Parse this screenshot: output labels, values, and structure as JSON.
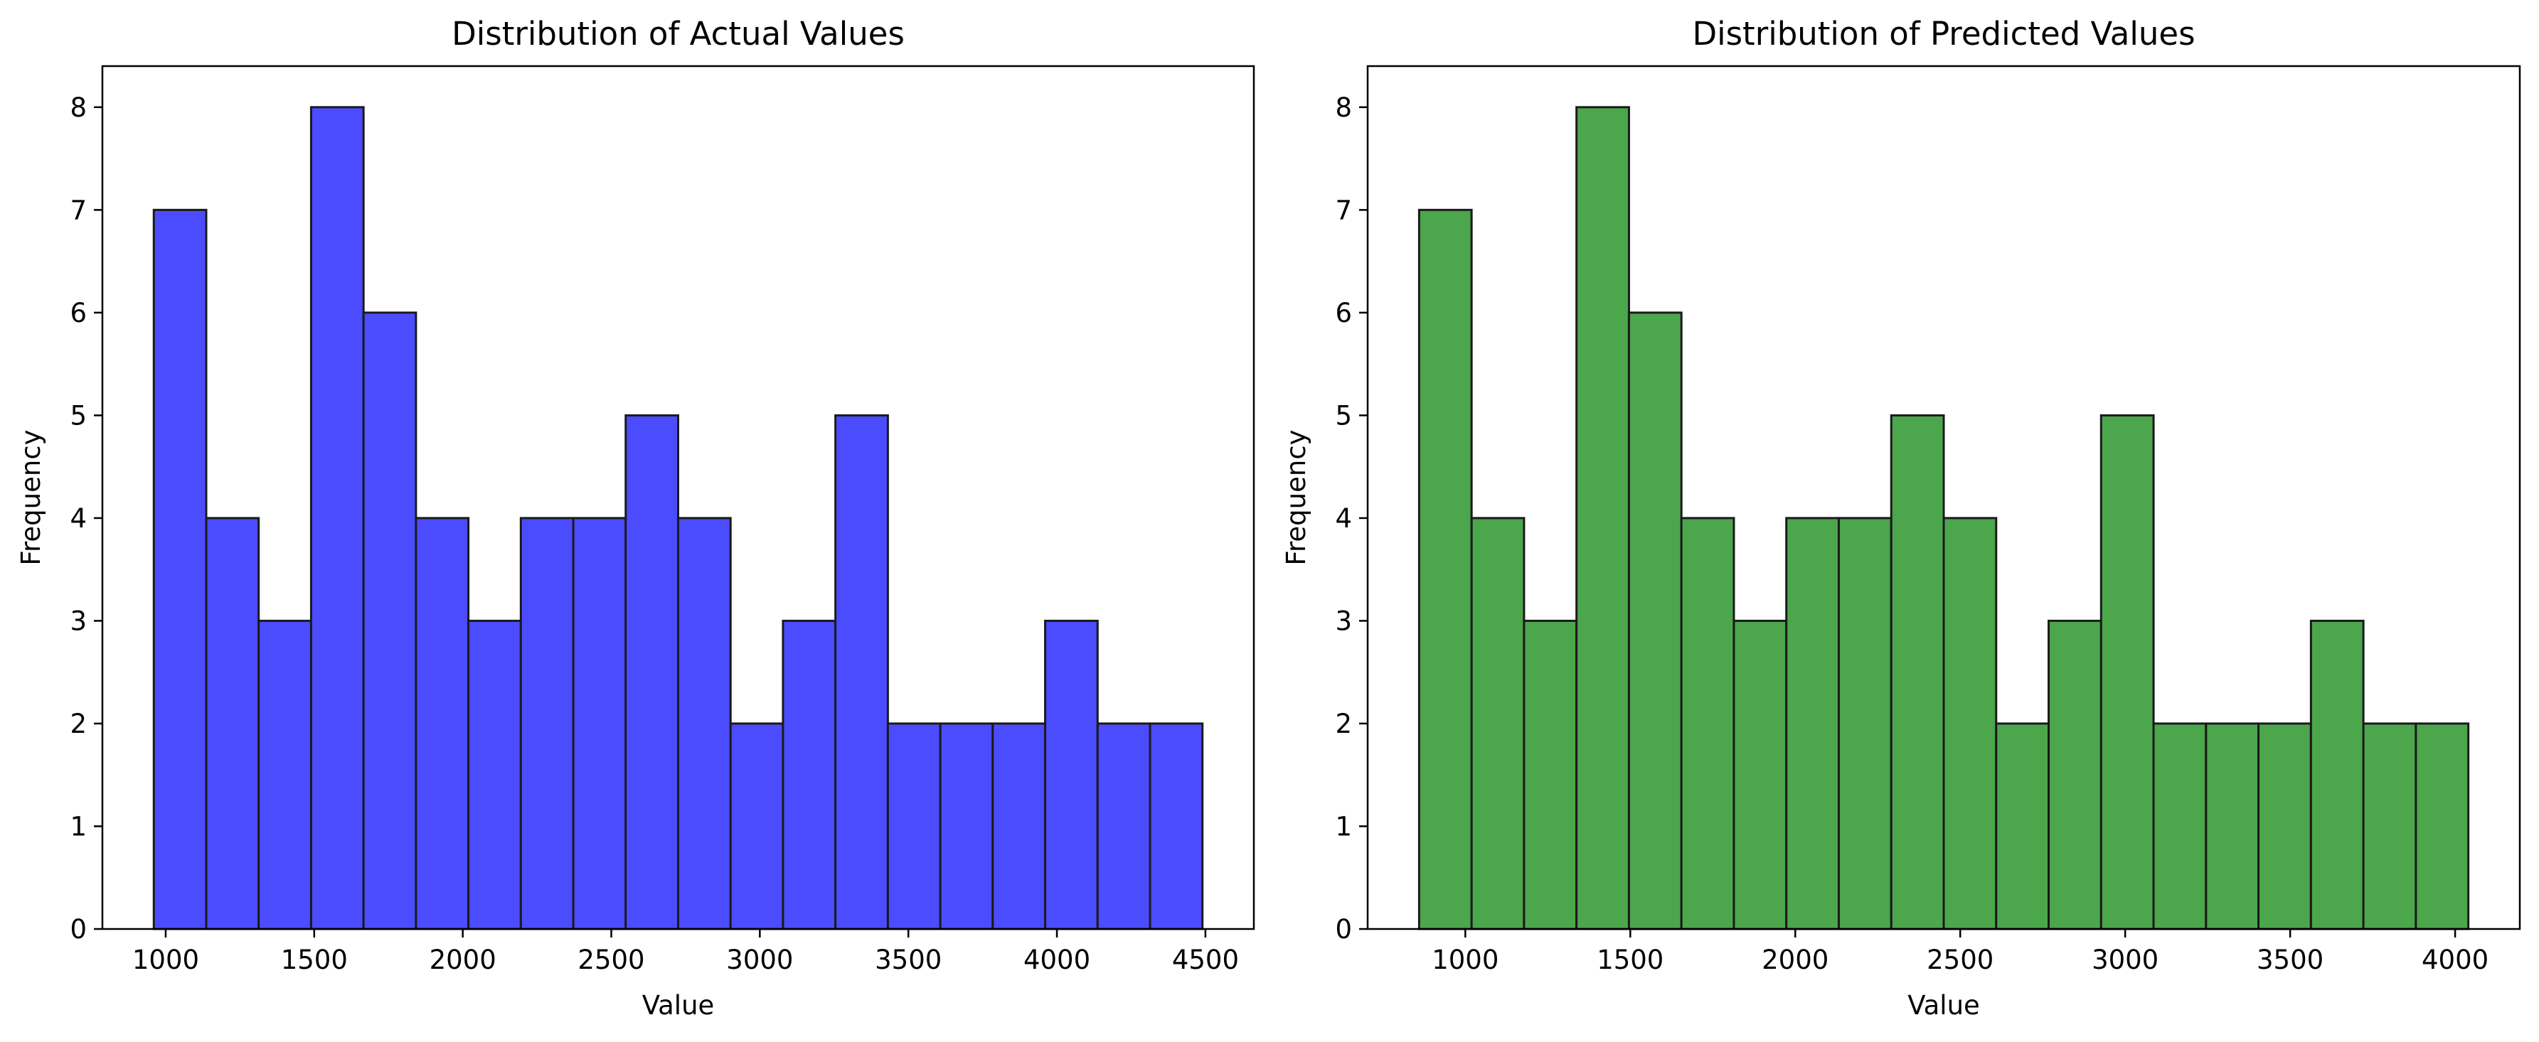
{
  "chart_data": [
    {
      "type": "bar",
      "title": "Distribution of Actual Values",
      "xlabel": "Value",
      "ylabel": "Frequency",
      "bin_edges": [
        960,
        1136.5,
        1313,
        1489.5,
        1666,
        1842.5,
        2019,
        2195.5,
        2372,
        2548.5,
        2725,
        2901.5,
        3078,
        3254.5,
        3431,
        3607.5,
        3784,
        3960.5,
        4137,
        4313.5,
        4490
      ],
      "values": [
        7,
        4,
        3,
        8,
        6,
        4,
        3,
        4,
        4,
        5,
        4,
        2,
        3,
        5,
        2,
        2,
        2,
        3,
        2,
        2
      ],
      "xlim": [
        787,
        4663
      ],
      "ylim": [
        0,
        8.4
      ],
      "xticks": [
        1000,
        1500,
        2000,
        2500,
        3000,
        3500,
        4000,
        4500
      ],
      "yticks": [
        0,
        1,
        2,
        3,
        4,
        5,
        6,
        7,
        8
      ],
      "grid": false,
      "bar_color": "#4c4cff",
      "edge_color": "#1a1a1a"
    },
    {
      "type": "bar",
      "title": "Distribution of Predicted Values",
      "xlabel": "Value",
      "ylabel": "Frequency",
      "bin_edges": [
        860,
        1019,
        1178,
        1337,
        1496,
        1655,
        1814,
        1973,
        2132,
        2291,
        2450,
        2609,
        2768,
        2927,
        3086,
        3245,
        3404,
        3563,
        3722,
        3881,
        4040
      ],
      "values": [
        7,
        4,
        3,
        8,
        6,
        4,
        3,
        4,
        4,
        5,
        4,
        2,
        3,
        5,
        2,
        2,
        2,
        3,
        2,
        2
      ],
      "xlim": [
        704,
        4196
      ],
      "ylim": [
        0,
        8.4
      ],
      "xticks": [
        1000,
        1500,
        2000,
        2500,
        3000,
        3500,
        4000
      ],
      "yticks": [
        0,
        1,
        2,
        3,
        4,
        5,
        6,
        7,
        8
      ],
      "grid": false,
      "bar_color": "#4ca64c",
      "edge_color": "#1a1a1a"
    }
  ]
}
